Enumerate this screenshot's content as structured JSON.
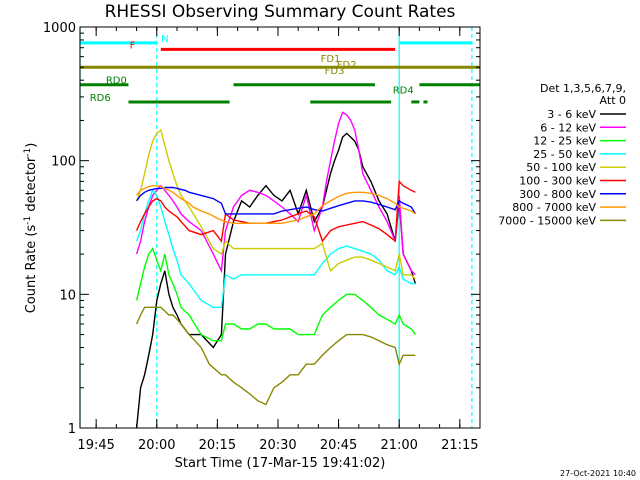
{
  "chart_data": {
    "type": "line",
    "title": "RHESSI Observing Summary Count Rates",
    "xlabel": "Start Time (17-Mar-15 19:41:02)",
    "ylabel_main": "Count Rate (s",
    "ylabel_sup": "-1",
    "ylabel_mid": " detector",
    "ylabel_sup2": "-1",
    "ylabel_end": ")",
    "x_unit": "minutes since 19:41:02",
    "xlim": [
      0,
      99
    ],
    "ylim": [
      1,
      1000
    ],
    "yscale": "log",
    "x_tick_values": [
      4,
      19,
      34,
      49,
      64,
      79,
      94
    ],
    "x_tick_labels": [
      "19:45",
      "20:00",
      "20:15",
      "20:30",
      "20:45",
      "21:00",
      "21:15"
    ],
    "y_ticks": [
      {
        "value": 1,
        "label": "1"
      },
      {
        "value": 10,
        "label": "10"
      },
      {
        "value": 100,
        "label": "100"
      },
      {
        "value": 1000,
        "label": "1000"
      }
    ],
    "legend_header": [
      "Det 1,3,5,6,7,9,",
      "Att 0"
    ],
    "legend_placement": "right",
    "timestamp": "27-Oct-2021 10:40",
    "series": [
      {
        "name": "3 - 6 keV",
        "color": "#000000",
        "x": [
          14,
          15,
          16,
          17,
          18,
          19,
          20,
          21,
          22,
          23,
          24,
          25,
          27,
          30,
          33,
          35,
          36,
          38,
          40,
          42,
          44,
          46,
          48,
          50,
          52,
          54,
          56,
          58,
          60,
          62,
          63,
          64,
          65,
          66,
          67,
          68,
          69,
          70,
          72,
          74,
          76,
          78,
          79,
          80,
          82,
          83
        ],
        "y": [
          1,
          2,
          2.5,
          3.5,
          5,
          9,
          12,
          15,
          10,
          8,
          7,
          6,
          5,
          5,
          4,
          5,
          20,
          35,
          50,
          45,
          55,
          65,
          55,
          50,
          60,
          40,
          60,
          35,
          45,
          80,
          100,
          120,
          150,
          160,
          150,
          140,
          120,
          90,
          70,
          50,
          40,
          25,
          50,
          20,
          15,
          12
        ]
      },
      {
        "name": "6 - 12 keV",
        "color": "#ff00ff",
        "x": [
          14,
          15,
          16,
          17,
          18,
          19,
          20,
          21,
          22,
          23,
          24,
          25,
          27,
          30,
          33,
          35,
          36,
          38,
          40,
          42,
          44,
          46,
          48,
          50,
          52,
          54,
          56,
          58,
          60,
          61,
          62,
          63,
          64,
          65,
          66,
          67,
          68,
          69,
          70,
          72,
          74,
          76,
          78,
          79,
          80,
          82,
          83
        ],
        "y": [
          20,
          25,
          35,
          45,
          55,
          60,
          65,
          60,
          55,
          50,
          45,
          40,
          35,
          30,
          20,
          15,
          30,
          45,
          55,
          60,
          58,
          55,
          50,
          45,
          40,
          35,
          55,
          30,
          45,
          70,
          100,
          140,
          190,
          230,
          220,
          200,
          170,
          120,
          80,
          60,
          45,
          35,
          25,
          55,
          20,
          15,
          14
        ]
      },
      {
        "name": "12 - 25 keV",
        "color": "#00ff00",
        "x": [
          14,
          15,
          16,
          17,
          18,
          19,
          20,
          21,
          22,
          23,
          24,
          25,
          27,
          30,
          33,
          35,
          36,
          38,
          40,
          42,
          44,
          46,
          48,
          50,
          52,
          54,
          56,
          58,
          60,
          62,
          64,
          66,
          68,
          70,
          72,
          74,
          76,
          78,
          79,
          80,
          82,
          83
        ],
        "y": [
          9,
          12,
          16,
          20,
          22,
          18,
          15,
          20,
          14,
          12,
          10,
          8,
          7,
          5,
          4.5,
          4.5,
          6,
          6,
          5.5,
          5.5,
          6,
          6,
          5.5,
          5.5,
          5.5,
          5,
          5,
          5,
          7,
          8,
          9,
          10,
          10,
          9,
          8,
          7,
          6.5,
          6,
          7,
          6,
          5.5,
          5
        ]
      },
      {
        "name": "25 - 50 keV",
        "color": "#00ffff",
        "x": [
          14,
          15,
          16,
          17,
          18,
          19,
          20,
          21,
          22,
          23,
          24,
          25,
          27,
          30,
          33,
          35,
          36,
          38,
          40,
          42,
          44,
          46,
          48,
          50,
          52,
          54,
          56,
          58,
          60,
          62,
          64,
          66,
          68,
          70,
          72,
          74,
          76,
          78,
          79,
          80,
          82,
          83
        ],
        "y": [
          25,
          30,
          40,
          50,
          60,
          55,
          45,
          35,
          28,
          22,
          18,
          14,
          12,
          9,
          8,
          8,
          14,
          13,
          14,
          14,
          14,
          14,
          14,
          14,
          14,
          14,
          14,
          14,
          17,
          20,
          22,
          23,
          22,
          21,
          20,
          18,
          15,
          14,
          16,
          13,
          12,
          12
        ]
      },
      {
        "name": "50 - 100 keV",
        "color": "#cccc00",
        "x": [
          14,
          15,
          16,
          17,
          18,
          19,
          20,
          21,
          22,
          23,
          24,
          25,
          27,
          30,
          33,
          35,
          36,
          38,
          40,
          42,
          44,
          46,
          48,
          50,
          52,
          54,
          56,
          58,
          60,
          62,
          64,
          66,
          68,
          70,
          72,
          74,
          76,
          78,
          79,
          80,
          82,
          83
        ],
        "y": [
          50,
          60,
          80,
          110,
          140,
          160,
          170,
          130,
          100,
          80,
          65,
          55,
          45,
          32,
          22,
          20,
          25,
          22,
          22,
          22,
          22,
          22,
          22,
          22,
          22,
          22,
          22,
          22,
          24,
          15,
          17,
          18,
          19,
          19,
          18,
          17,
          16,
          15,
          20,
          14,
          14,
          13
        ]
      },
      {
        "name": "100 - 300 keV",
        "color": "#ff0000",
        "x": [
          14,
          15,
          16,
          17,
          18,
          19,
          20,
          21,
          22,
          23,
          24,
          25,
          27,
          30,
          33,
          35,
          36,
          38,
          40,
          42,
          44,
          46,
          48,
          50,
          52,
          54,
          56,
          58,
          60,
          62,
          64,
          66,
          68,
          70,
          72,
          74,
          76,
          78,
          79,
          80,
          82,
          83
        ],
        "y": [
          30,
          35,
          40,
          45,
          50,
          52,
          50,
          45,
          42,
          40,
          38,
          35,
          30,
          28,
          30,
          25,
          40,
          36,
          35,
          34,
          34,
          34,
          35,
          36,
          38,
          40,
          42,
          38,
          25,
          30,
          32,
          33,
          34,
          35,
          33,
          31,
          28,
          25,
          70,
          65,
          60,
          58
        ]
      },
      {
        "name": "300 - 800 keV",
        "color": "#0000ff",
        "x": [
          14,
          15,
          16,
          17,
          18,
          19,
          20,
          21,
          22,
          23,
          24,
          25,
          26,
          27,
          28,
          30,
          33,
          35,
          36,
          38,
          40,
          42,
          44,
          46,
          48,
          50,
          52,
          54,
          56,
          58,
          60,
          62,
          64,
          66,
          68,
          70,
          72,
          74,
          76,
          78,
          79,
          80,
          82,
          83
        ],
        "y": [
          50,
          55,
          58,
          60,
          61,
          62,
          62,
          63,
          63,
          63,
          62,
          61,
          60,
          58,
          57,
          55,
          52,
          48,
          40,
          40,
          40,
          40,
          40,
          40,
          40,
          42,
          43,
          44,
          45,
          43,
          42,
          44,
          46,
          48,
          50,
          50,
          49,
          47,
          45,
          43,
          50,
          48,
          45,
          40
        ]
      },
      {
        "name": "800 - 7000 keV",
        "color": "#ff9900",
        "x": [
          14,
          15,
          16,
          17,
          18,
          19,
          20,
          21,
          22,
          23,
          24,
          25,
          26,
          27,
          28,
          30,
          32,
          34,
          36,
          38,
          40,
          42,
          44,
          46,
          48,
          50,
          52,
          54,
          56,
          58,
          60,
          62,
          64,
          66,
          68,
          70,
          72,
          74,
          76,
          78,
          79,
          80,
          82,
          83
        ],
        "y": [
          55,
          60,
          62,
          64,
          65,
          65,
          64,
          62,
          60,
          58,
          55,
          52,
          50,
          48,
          45,
          42,
          40,
          37,
          35,
          34,
          34,
          34,
          34,
          34,
          34,
          34,
          35,
          36,
          38,
          40,
          46,
          50,
          54,
          57,
          58,
          58,
          57,
          55,
          52,
          48,
          45,
          44,
          42,
          40
        ]
      },
      {
        "name": "7000 - 15000 keV",
        "color": "#888800",
        "x": [
          14,
          15,
          16,
          17,
          18,
          19,
          20,
          21,
          22,
          23,
          24,
          25,
          27,
          30,
          32,
          35,
          36,
          38,
          40,
          42,
          44,
          46,
          48,
          50,
          52,
          54,
          56,
          58,
          60,
          62,
          64,
          66,
          68,
          70,
          72,
          74,
          76,
          78,
          79,
          80,
          82,
          83
        ],
        "y": [
          6,
          7,
          8,
          8,
          8,
          8,
          8,
          7.5,
          7,
          7,
          6.5,
          6,
          5,
          4,
          3,
          2.5,
          2.5,
          2.2,
          2,
          1.8,
          1.6,
          1.5,
          2,
          2.2,
          2.5,
          2.5,
          3,
          3,
          3.5,
          4,
          4.5,
          5,
          5,
          5,
          4.8,
          4.5,
          4.2,
          4,
          3,
          3.5,
          3.5,
          3.5
        ]
      }
    ],
    "vlines": [
      {
        "x": 0,
        "color": "#00ffff",
        "style": "solid"
      },
      {
        "x": 19,
        "color": "#00ffff",
        "style": "dashed"
      },
      {
        "x": 79,
        "color": "#00ffff",
        "style": "solid"
      },
      {
        "x": 97,
        "color": "#00ffff",
        "style": "dashed"
      }
    ],
    "intervals": [
      {
        "label": "N",
        "color": "#00ffff",
        "y": 760,
        "segments": [
          [
            0,
            19
          ],
          [
            79,
            97
          ]
        ]
      },
      {
        "label": "F",
        "color": "#ff0000",
        "y": 680,
        "segments": [
          [
            20,
            78
          ]
        ]
      },
      {
        "label": "FD1",
        "color": "#888800",
        "y": 500,
        "segments": [
          [
            0,
            99
          ]
        ]
      },
      {
        "label": "FD2",
        "color": "#888800",
        "y": 500,
        "segments": []
      },
      {
        "label": "FD3",
        "color": "#888800",
        "y": 500,
        "segments": []
      },
      {
        "label": "RD0",
        "color": "#008000",
        "y": 370,
        "segments": [
          [
            0,
            12
          ],
          [
            38,
            73
          ]
        ]
      },
      {
        "label": "RD4",
        "color": "#008000",
        "y": 370,
        "segments": [
          [
            84,
            99
          ]
        ]
      },
      {
        "label": "RD6",
        "color": "#008000",
        "y": 275,
        "segments": [
          [
            12,
            37
          ],
          [
            57,
            77
          ],
          [
            82,
            84
          ],
          [
            85,
            86
          ]
        ]
      }
    ]
  }
}
